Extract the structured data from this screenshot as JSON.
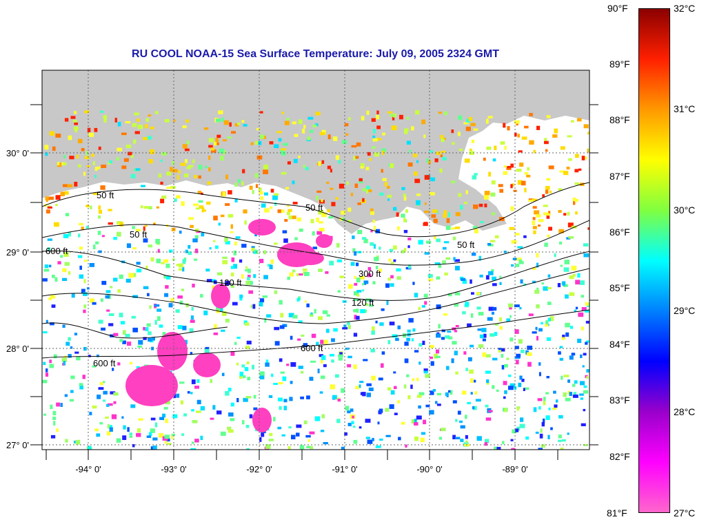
{
  "title": "RU COOL  NOAA-15  Sea Surface Temperature:  July 09, 2005 2324 GMT",
  "lon_labels": [
    "-94° 0'",
    "-93° 0'",
    "-92° 0'",
    "-91° 0'",
    "-90° 0'",
    "-89° 0'"
  ],
  "lat_labels": [
    "30° 0'",
    "29° 0'",
    "28° 0'",
    "27° 0'"
  ],
  "contour_labels": [
    "50 ft",
    "50 ft",
    "50 ft",
    "50 ft",
    "120 ft",
    "120 ft",
    "300 ft",
    "600 ft",
    "600 ft",
    "600 ft"
  ],
  "colorbar": {
    "f_labels": [
      "90°F",
      "89°F",
      "88°F",
      "87°F",
      "86°F",
      "85°F",
      "84°F",
      "83°F",
      "82°F",
      "81°F"
    ],
    "c_labels": [
      "32°C",
      "31°C",
      "30°C",
      "29°C",
      "28°C",
      "27°C"
    ],
    "colors": [
      "#8b0000",
      "#ff2000",
      "#ff9900",
      "#ffff00",
      "#80ff40",
      "#00ffff",
      "#0080ff",
      "#0000ff",
      "#9900cc",
      "#ff00ff",
      "#ff66cc"
    ]
  },
  "land_color": "#c8c8c8"
}
